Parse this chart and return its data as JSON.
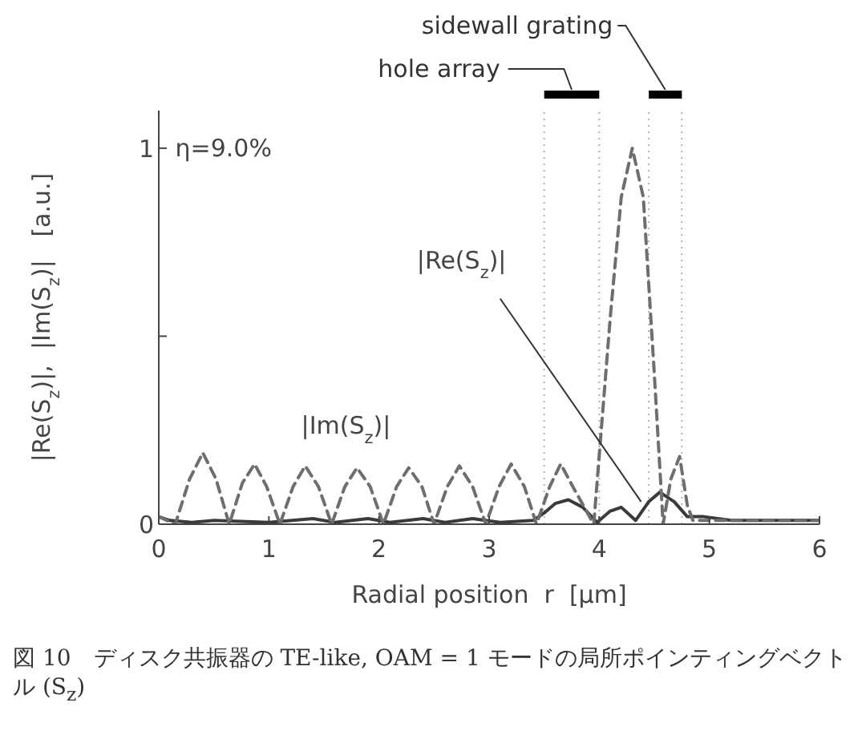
{
  "chart_data": {
    "type": "line",
    "xlabel": "Radial position  r  [μm]",
    "ylabel": "|Re(S$_{z}$)|,  |Im(S$_{z}$)|   [a.u.]",
    "xlim": [
      0,
      6
    ],
    "xticks": [
      0,
      1,
      2,
      3,
      4,
      5,
      6
    ],
    "ylim": [
      0,
      1.1
    ],
    "yticks": [
      0,
      {
        "value": 0.5,
        "label": null
      },
      1
    ],
    "series": [
      {
        "name": "|Re(S$_{z}$)|",
        "color": "#3a3a3a",
        "line_style": "solid",
        "x": [
          0,
          0.1,
          0.3,
          0.5,
          1,
          1.4,
          1.6,
          1.9,
          2.1,
          2.4,
          2.6,
          2.85,
          3.1,
          3.4,
          3.5,
          3.6,
          3.72,
          3.85,
          3.98,
          4.1,
          4.2,
          4.33,
          4.45,
          4.55,
          4.68,
          4.8,
          4.95,
          5.2,
          6
        ],
        "values": [
          0.02,
          0.01,
          0.005,
          0.01,
          0.005,
          0.015,
          0.005,
          0.015,
          0.005,
          0.015,
          0.005,
          0.015,
          0.005,
          0.01,
          0.03,
          0.055,
          0.065,
          0.045,
          0.005,
          0.035,
          0.045,
          0.01,
          0.06,
          0.085,
          0.06,
          0.02,
          0.02,
          0.01,
          0.01
        ]
      },
      {
        "name": "|Im(S$_{z}$)|",
        "color": "#6e6e6e",
        "line_style": "dashed",
        "x": [
          0,
          0.15,
          0.28,
          0.4,
          0.52,
          0.64,
          0.76,
          0.87,
          0.98,
          1.1,
          1.22,
          1.33,
          1.45,
          1.57,
          1.69,
          1.8,
          1.92,
          2.04,
          2.16,
          2.27,
          2.39,
          2.5,
          2.62,
          2.73,
          2.85,
          2.97,
          3.09,
          3.2,
          3.32,
          3.43,
          3.55,
          3.65,
          3.76,
          3.95,
          4.1,
          4.2,
          4.3,
          4.4,
          4.5,
          4.58,
          4.65,
          4.73,
          4.8,
          4.85,
          5,
          6
        ],
        "values": [
          0.02,
          0,
          0.12,
          0.19,
          0.12,
          0,
          0.11,
          0.16,
          0.1,
          0,
          0.1,
          0.155,
          0.1,
          0,
          0.1,
          0.15,
          0.1,
          0,
          0.1,
          0.15,
          0.1,
          0,
          0.1,
          0.155,
          0.1,
          0,
          0.1,
          0.16,
          0.1,
          0,
          0.1,
          0.16,
          0.1,
          0,
          0.55,
          0.87,
          1,
          0.87,
          0.4,
          0,
          0.12,
          0.18,
          0.05,
          0.01,
          0.01,
          0.01
        ]
      }
    ],
    "ref_lines": [
      {
        "axis": "x",
        "value": 3.5,
        "line_style": "dotted",
        "color": "#b0b0b0"
      },
      {
        "axis": "x",
        "value": 4,
        "line_style": "dotted",
        "color": "#b0b0b0"
      },
      {
        "axis": "x",
        "value": 4.45,
        "line_style": "dotted",
        "color": "#b0b0b0"
      },
      {
        "axis": "x",
        "value": 4.75,
        "line_style": "dotted",
        "color": "#b0b0b0"
      }
    ],
    "annotations": [
      "η=9.0%",
      "図 10　ディスク共振器の TE-like, OAM = 1 モードの局所ポインティングベクトル (S$_{z}$)",
      "hole array",
      "sidewall grating"
    ]
  }
}
